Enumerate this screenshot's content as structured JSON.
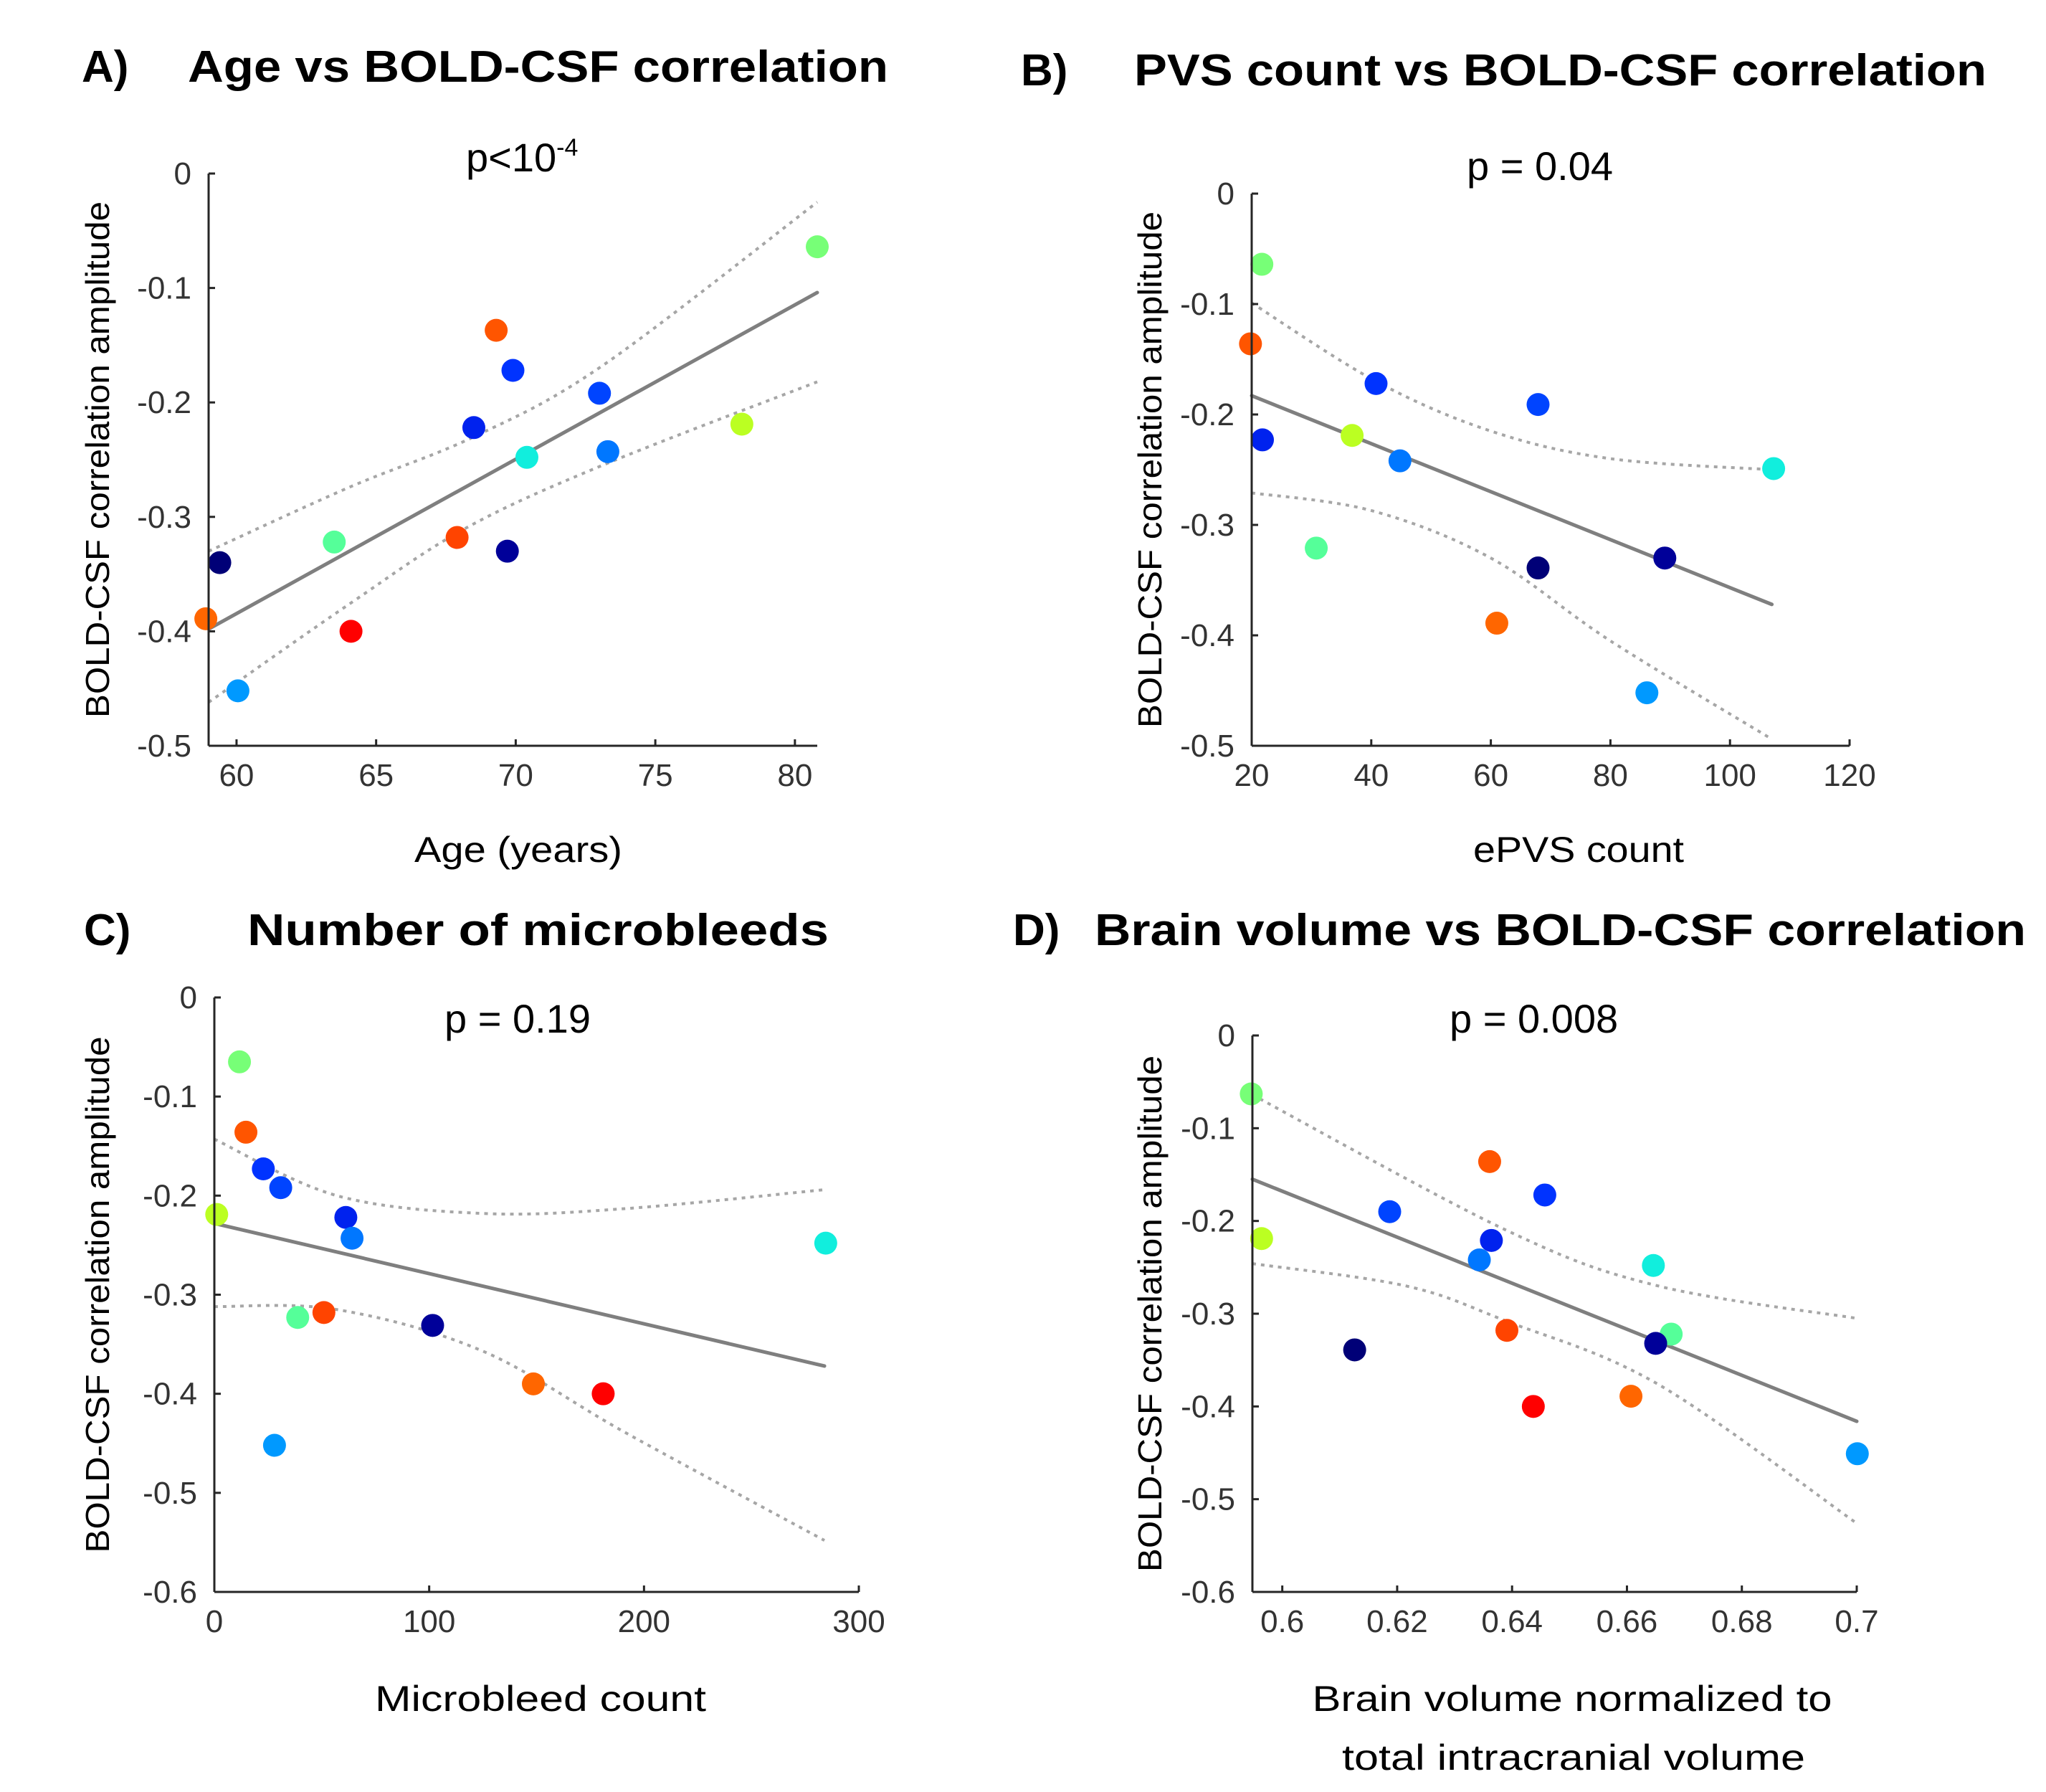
{
  "figure": {
    "description": "Four scatter plots of BOLD-CSF correlation amplitude against subject measures, with linear fit and confidence bands"
  },
  "chart_data": [
    {
      "id": "A",
      "type": "scatter",
      "panel_label": "A)",
      "title": "Age vs BOLD-CSF correlation",
      "annotation": {
        "text": "p<10",
        "superscript": "-4"
      },
      "xlabel": [
        "Age (years)"
      ],
      "ylabel": "BOLD-CSF correlation amplitude",
      "xlim": [
        59,
        80.8
      ],
      "ylim": [
        -0.5,
        0
      ],
      "xticks": [
        60,
        65,
        70,
        75,
        80
      ],
      "xtick_labels": [
        "60",
        "65",
        "70",
        "75",
        "80"
      ],
      "yticks": [
        0,
        -0.1,
        -0.2,
        -0.3,
        -0.4,
        -0.5
      ],
      "ytick_labels": [
        "0",
        "-0.1",
        "-0.2",
        "-0.3",
        "-0.4",
        "-0.5"
      ],
      "grid": false,
      "legend": "none",
      "points": [
        {
          "x": 80.8,
          "y": -0.064,
          "color": "#77FF77"
        },
        {
          "x": 69.3,
          "y": -0.137,
          "color": "#FF5500"
        },
        {
          "x": 69.9,
          "y": -0.172,
          "color": "#0033FF"
        },
        {
          "x": 73.0,
          "y": -0.192,
          "color": "#0044FF"
        },
        {
          "x": 68.5,
          "y": -0.222,
          "color": "#0022EE"
        },
        {
          "x": 78.1,
          "y": -0.219,
          "color": "#BBFF22"
        },
        {
          "x": 73.3,
          "y": -0.243,
          "color": "#0077FF"
        },
        {
          "x": 70.4,
          "y": -0.248,
          "color": "#11EEDD"
        },
        {
          "x": 63.5,
          "y": -0.322,
          "color": "#55FF99"
        },
        {
          "x": 67.9,
          "y": -0.318,
          "color": "#FF4400"
        },
        {
          "x": 69.7,
          "y": -0.33,
          "color": "#000099"
        },
        {
          "x": 59.4,
          "y": -0.34,
          "color": "#000077"
        },
        {
          "x": 58.9,
          "y": -0.389,
          "color": "#FF6600"
        },
        {
          "x": 64.1,
          "y": -0.4,
          "color": "#FF0000"
        },
        {
          "x": 60.05,
          "y": -0.452,
          "color": "#0099FF"
        }
      ],
      "fit": [
        [
          59.0,
          -0.398
        ],
        [
          80.8,
          -0.104
        ]
      ],
      "ci_upper": [
        [
          59.0,
          -0.33
        ],
        [
          64.05,
          -0.274
        ],
        [
          68.5,
          -0.23
        ],
        [
          73.1,
          -0.168
        ],
        [
          80.8,
          -0.025
        ]
      ],
      "ci_lower": [
        [
          59.0,
          -0.462
        ],
        [
          64.05,
          -0.376
        ],
        [
          68.2,
          -0.31
        ],
        [
          73.1,
          -0.255
        ],
        [
          80.8,
          -0.182
        ]
      ]
    },
    {
      "id": "B",
      "type": "scatter",
      "panel_label": "B)",
      "title": "PVS count vs BOLD-CSF correlation",
      "annotation": {
        "text": "p = 0.04",
        "superscript": ""
      },
      "xlabel": [
        "ePVS count"
      ],
      "ylabel": "BOLD-CSF correlation amplitude",
      "xlim": [
        20,
        120
      ],
      "ylim": [
        -0.5,
        0
      ],
      "xticks": [
        20,
        40,
        60,
        80,
        100,
        120
      ],
      "xtick_labels": [
        "20",
        "40",
        "60",
        "80",
        "100",
        "120"
      ],
      "yticks": [
        0,
        -0.1,
        -0.2,
        -0.3,
        -0.4,
        -0.5
      ],
      "ytick_labels": [
        "0",
        "-0.1",
        "-0.2",
        "-0.3",
        "-0.4",
        "-0.5"
      ],
      "grid": false,
      "legend": "none",
      "points": [
        {
          "x": 21.7,
          "y": -0.064,
          "color": "#77FF77"
        },
        {
          "x": 19.8,
          "y": -0.136,
          "color": "#FF5500"
        },
        {
          "x": 40.8,
          "y": -0.172,
          "color": "#0033FF"
        },
        {
          "x": 67.9,
          "y": -0.191,
          "color": "#0044FF"
        },
        {
          "x": 21.8,
          "y": -0.223,
          "color": "#0022EE"
        },
        {
          "x": 36.8,
          "y": -0.219,
          "color": "#BBFF22"
        },
        {
          "x": 44.8,
          "y": -0.242,
          "color": "#0077FF"
        },
        {
          "x": 107.3,
          "y": -0.249,
          "color": "#11EEDD"
        },
        {
          "x": 30.8,
          "y": -0.321,
          "color": "#55FF99"
        },
        {
          "x": 89.1,
          "y": -0.33,
          "color": "#000099"
        },
        {
          "x": 67.9,
          "y": -0.339,
          "color": "#000077"
        },
        {
          "x": 61.0,
          "y": -0.389,
          "color": "#FF6600"
        },
        {
          "x": 86.1,
          "y": -0.452,
          "color": "#0099FF"
        }
      ],
      "fit": [
        [
          20,
          -0.183
        ],
        [
          107,
          -0.372
        ]
      ],
      "ci_upper": [
        [
          20,
          -0.099
        ],
        [
          40.8,
          -0.17
        ],
        [
          60,
          -0.215
        ],
        [
          80,
          -0.24
        ],
        [
          107,
          -0.25
        ]
      ],
      "ci_lower": [
        [
          20,
          -0.271
        ],
        [
          40,
          -0.287
        ],
        [
          60,
          -0.33
        ],
        [
          80,
          -0.405
        ],
        [
          107,
          -0.494
        ]
      ]
    },
    {
      "id": "C",
      "type": "scatter",
      "panel_label": "C)",
      "title": "Number of microbleeds",
      "annotation": {
        "text": "p = 0.19",
        "superscript": ""
      },
      "xlabel": [
        "Microbleed count"
      ],
      "ylabel": "BOLD-CSF correlation amplitude",
      "xlim": [
        0,
        300
      ],
      "ylim": [
        -0.6,
        0
      ],
      "xticks": [
        0,
        100,
        200,
        300
      ],
      "xtick_labels": [
        "0",
        "100",
        "200",
        "300"
      ],
      "yticks": [
        0,
        -0.1,
        -0.2,
        -0.3,
        -0.4,
        -0.5,
        -0.6
      ],
      "ytick_labels": [
        "0",
        "-0.1",
        "-0.2",
        "-0.3",
        "-0.4",
        "-0.5",
        "-0.6"
      ],
      "grid": false,
      "legend": "none",
      "points": [
        {
          "x": 11.7,
          "y": -0.065,
          "color": "#77FF77"
        },
        {
          "x": 14.7,
          "y": -0.136,
          "color": "#FF5500"
        },
        {
          "x": 22.8,
          "y": -0.173,
          "color": "#0033FF"
        },
        {
          "x": 30.9,
          "y": -0.192,
          "color": "#0044FF"
        },
        {
          "x": 1.1,
          "y": -0.219,
          "color": "#BBFF22"
        },
        {
          "x": 61.2,
          "y": -0.222,
          "color": "#0022EE"
        },
        {
          "x": 64.1,
          "y": -0.243,
          "color": "#0077FF"
        },
        {
          "x": 284.6,
          "y": -0.248,
          "color": "#11EEDD"
        },
        {
          "x": 38.8,
          "y": -0.323,
          "color": "#55FF99"
        },
        {
          "x": 51.0,
          "y": -0.318,
          "color": "#FF4400"
        },
        {
          "x": 101.6,
          "y": -0.331,
          "color": "#000099"
        },
        {
          "x": 148.5,
          "y": -0.39,
          "color": "#FF6600"
        },
        {
          "x": 181.0,
          "y": -0.4,
          "color": "#FF0000"
        },
        {
          "x": 28.0,
          "y": -0.452,
          "color": "#0099FF"
        }
      ],
      "fit": [
        [
          0,
          -0.228
        ],
        [
          284,
          -0.372
        ]
      ],
      "ci_upper": [
        [
          0,
          -0.143
        ],
        [
          57,
          -0.2
        ],
        [
          125,
          -0.218
        ],
        [
          192,
          -0.213
        ],
        [
          284,
          -0.194
        ]
      ],
      "ci_lower": [
        [
          0,
          -0.312
        ],
        [
          57,
          -0.315
        ],
        [
          125,
          -0.357
        ],
        [
          192,
          -0.44
        ],
        [
          284,
          -0.548
        ]
      ]
    },
    {
      "id": "D",
      "type": "scatter",
      "panel_label": "D)",
      "title": "Brain volume vs BOLD-CSF correlation",
      "annotation": {
        "text": "p = 0.008",
        "superscript": ""
      },
      "xlabel": [
        "Brain volume normalized to",
        "total intracranial volume"
      ],
      "ylabel": "BOLD-CSF correlation amplitude",
      "xlim": [
        0.5948,
        0.7
      ],
      "ylim": [
        -0.6,
        0
      ],
      "xticks": [
        0.6,
        0.62,
        0.64,
        0.66,
        0.68,
        0.7
      ],
      "xtick_labels": [
        "0.6",
        "0.62",
        "0.64",
        "0.66",
        "0.68",
        "0.7"
      ],
      "yticks": [
        0,
        -0.1,
        -0.2,
        -0.3,
        -0.4,
        -0.5,
        -0.6
      ],
      "ytick_labels": [
        "0",
        "-0.1",
        "-0.2",
        "-0.3",
        "-0.4",
        "-0.5",
        "-0.6"
      ],
      "grid": false,
      "legend": "none",
      "points": [
        {
          "x": 0.5946,
          "y": -0.063,
          "color": "#77FF77"
        },
        {
          "x": 0.6361,
          "y": -0.136,
          "color": "#FF5500"
        },
        {
          "x": 0.6457,
          "y": -0.172,
          "color": "#0033FF"
        },
        {
          "x": 0.6187,
          "y": -0.19,
          "color": "#0044FF"
        },
        {
          "x": 0.5964,
          "y": -0.219,
          "color": "#BBFF22"
        },
        {
          "x": 0.6364,
          "y": -0.221,
          "color": "#0022EE"
        },
        {
          "x": 0.6343,
          "y": -0.242,
          "color": "#0077FF"
        },
        {
          "x": 0.6646,
          "y": -0.248,
          "color": "#11EEDD"
        },
        {
          "x": 0.6677,
          "y": -0.322,
          "color": "#55FF99"
        },
        {
          "x": 0.6391,
          "y": -0.318,
          "color": "#FF4400"
        },
        {
          "x": 0.665,
          "y": -0.332,
          "color": "#000099"
        },
        {
          "x": 0.6126,
          "y": -0.339,
          "color": "#000077"
        },
        {
          "x": 0.6607,
          "y": -0.389,
          "color": "#FF6600"
        },
        {
          "x": 0.6437,
          "y": -0.4,
          "color": "#FF0000"
        },
        {
          "x": 0.7001,
          "y": -0.451,
          "color": "#0099FF"
        }
      ],
      "fit": [
        [
          0.5948,
          -0.155
        ],
        [
          0.7,
          -0.416
        ]
      ],
      "ci_upper": [
        [
          0.5948,
          -0.064
        ],
        [
          0.639,
          -0.21
        ],
        [
          0.6654,
          -0.27
        ],
        [
          0.7,
          -0.305
        ]
      ],
      "ci_lower": [
        [
          0.5948,
          -0.246
        ],
        [
          0.6215,
          -0.27
        ],
        [
          0.639,
          -0.308
        ],
        [
          0.6654,
          -0.376
        ],
        [
          0.7,
          -0.526
        ]
      ]
    }
  ]
}
